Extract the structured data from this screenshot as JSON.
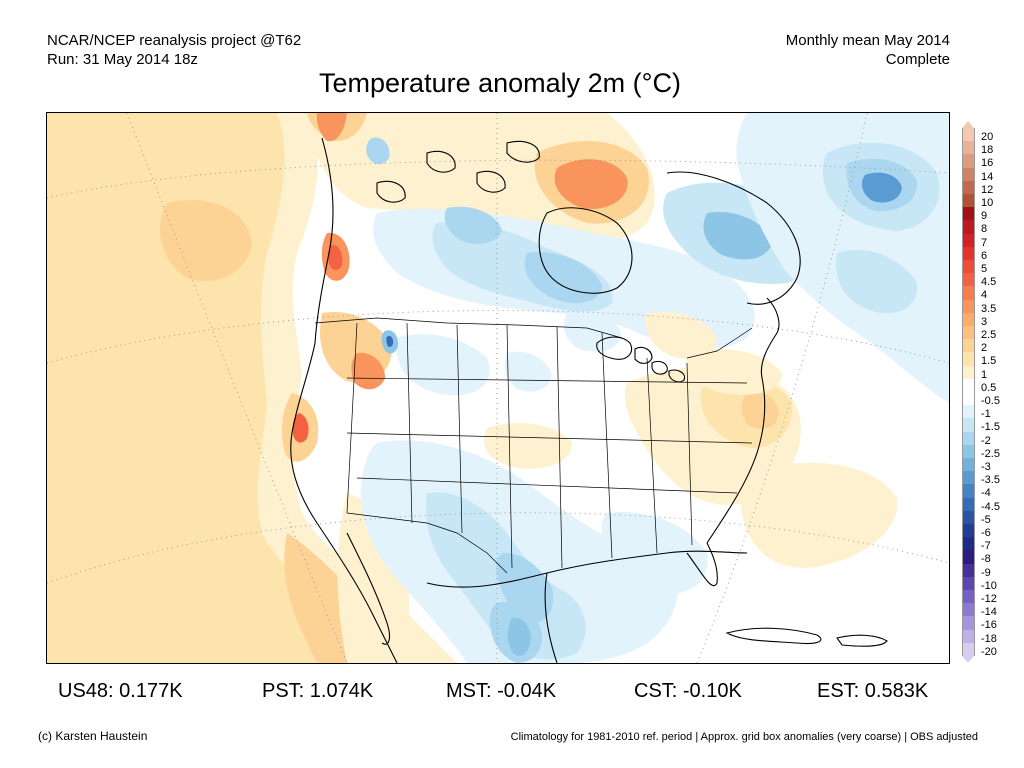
{
  "header": {
    "left_line1": "NCAR/NCEP reanalysis project @T62",
    "left_line2": "Run: 31 May 2014 18z",
    "right_line1": "Monthly mean May 2014",
    "right_line2": "Complete"
  },
  "title": "Temperature anomaly 2m (°C)",
  "colorbar": {
    "levels": [
      {
        "label": "20",
        "color": "#f2c9b3"
      },
      {
        "label": "18",
        "color": "#e9b39a"
      },
      {
        "label": "16",
        "color": "#dc9c80"
      },
      {
        "label": "14",
        "color": "#cf8466"
      },
      {
        "label": "12",
        "color": "#c06b4d"
      },
      {
        "label": "10",
        "color": "#b05236"
      },
      {
        "label": "9",
        "color": "#a30f15"
      },
      {
        "label": "8",
        "color": "#be1a1e"
      },
      {
        "label": "7",
        "color": "#d42027"
      },
      {
        "label": "6",
        "color": "#e5332d"
      },
      {
        "label": "5",
        "color": "#ef4b37"
      },
      {
        "label": "4.5",
        "color": "#f46244"
      },
      {
        "label": "4",
        "color": "#f77c50"
      },
      {
        "label": "3.5",
        "color": "#f9945c"
      },
      {
        "label": "3",
        "color": "#fbab6a"
      },
      {
        "label": "2.5",
        "color": "#fbc07d"
      },
      {
        "label": "2",
        "color": "#fcd394"
      },
      {
        "label": "1.5",
        "color": "#fde4ad"
      },
      {
        "label": "1",
        "color": "#fdf1cf"
      },
      {
        "label": "0.5",
        "color": "#ffffff"
      },
      {
        "label": "-0.5",
        "color": "#ffffff"
      },
      {
        "label": "-1",
        "color": "#e3f3fb"
      },
      {
        "label": "-1.5",
        "color": "#c8e7f6"
      },
      {
        "label": "-2",
        "color": "#aad7ef"
      },
      {
        "label": "-2.5",
        "color": "#8dc5e6"
      },
      {
        "label": "-3",
        "color": "#71b1dc"
      },
      {
        "label": "-3.5",
        "color": "#5a9bd1"
      },
      {
        "label": "-4",
        "color": "#4683c4"
      },
      {
        "label": "-4.5",
        "color": "#366bb6"
      },
      {
        "label": "-5",
        "color": "#2a54a6"
      },
      {
        "label": "-6",
        "color": "#203e96"
      },
      {
        "label": "-7",
        "color": "#1f2b86"
      },
      {
        "label": "-8",
        "color": "#2d1d80"
      },
      {
        "label": "-9",
        "color": "#46309a"
      },
      {
        "label": "-10",
        "color": "#5e47b0"
      },
      {
        "label": "-12",
        "color": "#7660c2"
      },
      {
        "label": "-14",
        "color": "#8d7ad0"
      },
      {
        "label": "-16",
        "color": "#a695dc"
      },
      {
        "label": "-18",
        "color": "#beb1e7"
      },
      {
        "label": "-20",
        "color": "#d7cdf1"
      }
    ]
  },
  "map_colors": {
    "warm_light": "#fdf1cf",
    "warm_1": "#fde4ad",
    "warm_2": "#fcd394",
    "warm_3": "#fbc07d",
    "warm_4": "#f9945c",
    "warm_5": "#f46244",
    "cool_1": "#e3f3fb",
    "cool_2": "#c8e7f6",
    "cool_3": "#aad7ef",
    "cool_4": "#8dc5e6",
    "cool_5": "#5a9bd1",
    "cool_6": "#366bb6"
  },
  "stats": [
    {
      "label": "US48: 0.177K"
    },
    {
      "label": "PST: 1.074K"
    },
    {
      "label": "MST: -0.04K"
    },
    {
      "label": "CST: -0.10K"
    },
    {
      "label": "EST: 0.583K"
    }
  ],
  "footer": {
    "left": "(c) Karsten Haustein",
    "right": "Climatology for 1981-2010 ref. period | Approx. grid box anomalies (very coarse) | OBS adjusted"
  }
}
